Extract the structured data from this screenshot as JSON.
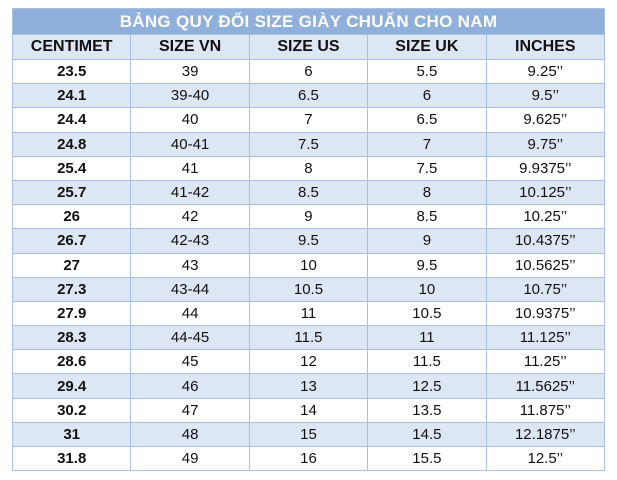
{
  "table": {
    "title": "BẢNG QUY ĐỔI SIZE GIÀY CHUẨN CHO NAM",
    "columns": [
      "CENTIMET",
      "SIZE VN",
      "SIZE US",
      "SIZE UK",
      "INCHES"
    ],
    "rows": [
      [
        "23.5",
        "39",
        "6",
        "5.5",
        "9.25’’"
      ],
      [
        "24.1",
        "39-40",
        "6.5",
        "6",
        "9.5’’"
      ],
      [
        "24.4",
        "40",
        "7",
        "6.5",
        "9.625’’"
      ],
      [
        "24.8",
        "40-41",
        "7.5",
        "7",
        "9.75’’"
      ],
      [
        "25.4",
        "41",
        "8",
        "7.5",
        "9.9375’’"
      ],
      [
        "25.7",
        "41-42",
        "8.5",
        "8",
        "10.125’’"
      ],
      [
        "26",
        "42",
        "9",
        "8.5",
        "10.25’’"
      ],
      [
        "26.7",
        "42-43",
        "9.5",
        "9",
        "10.4375’’"
      ],
      [
        "27",
        "43",
        "10",
        "9.5",
        "10.5625’’"
      ],
      [
        "27.3",
        "43-44",
        "10.5",
        "10",
        "10.75’’"
      ],
      [
        "27.9",
        "44",
        "11",
        "10.5",
        "10.9375’’"
      ],
      [
        "28.3",
        "44-45",
        "11.5",
        "11",
        "11.125’’"
      ],
      [
        "28.6",
        "45",
        "12",
        "11.5",
        "11.25’’"
      ],
      [
        "29.4",
        "46",
        "13",
        "12.5",
        "11.5625’’"
      ],
      [
        "30.2",
        "47",
        "14",
        "13.5",
        "11.875’’"
      ],
      [
        "31",
        "48",
        "15",
        "14.5",
        "12.1875’’"
      ],
      [
        "31.8",
        "49",
        "16",
        "15.5",
        "12.5’’"
      ]
    ]
  }
}
